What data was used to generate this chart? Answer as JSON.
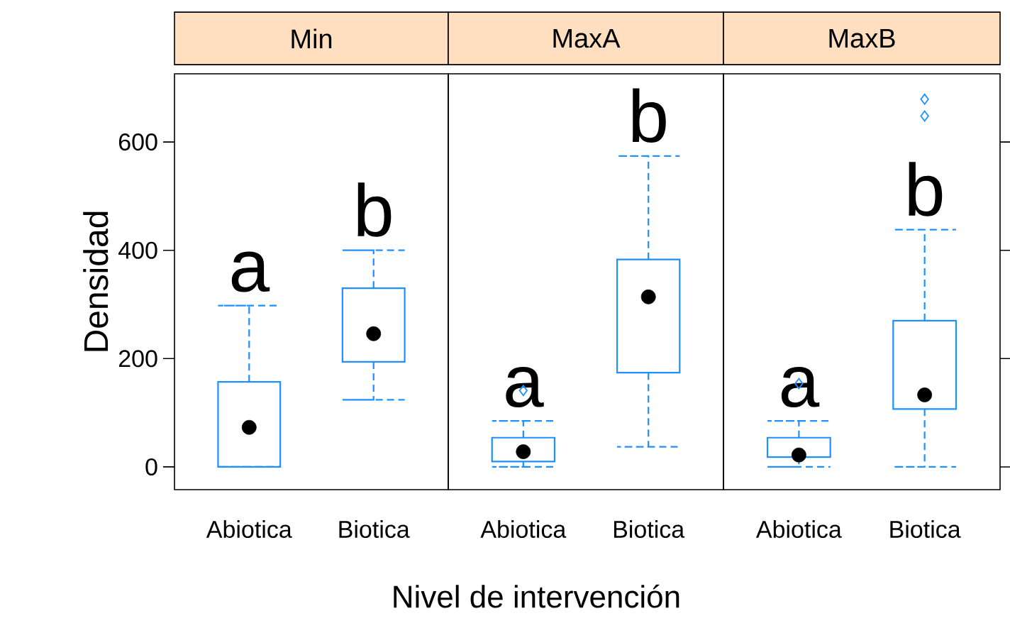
{
  "chart_data": [
    {
      "type": "box",
      "title": "Min",
      "ylabel": "Densidad",
      "categories": [
        "Abiotica",
        "Biotica"
      ],
      "color": "#1e90ff",
      "ylim": [
        -42,
        726
      ],
      "yticks": [
        0,
        200,
        400,
        600
      ],
      "boxes": [
        {
          "low": 0,
          "q1": 0,
          "median": 73,
          "q3": 157,
          "high": 298
        },
        {
          "low": 124,
          "q1": 194,
          "median": 246,
          "q3": 330,
          "high": 400
        }
      ],
      "annotations": [
        "a",
        "b"
      ]
    },
    {
      "type": "box",
      "title": "MaxA",
      "xlabel": "Nivel de intervención",
      "categories": [
        "Abiotica",
        "Biotica"
      ],
      "color": "#1e90ff",
      "ylim": [
        -42,
        726
      ],
      "tick_labels": "x",
      "boxes": [
        {
          "low": 0,
          "q1": 10,
          "median": 28,
          "q3": 54,
          "high": 85,
          "outliers": [
            141
          ]
        },
        {
          "low": 37,
          "q1": 174,
          "median": 314,
          "q3": 383,
          "high": 574
        }
      ],
      "annotations": [
        "a",
        "b"
      ]
    },
    {
      "type": "box",
      "title": "MaxB",
      "categories": [
        "Abiotica",
        "Biotica"
      ],
      "color": "#1e90ff",
      "ylim": [
        -42,
        726
      ],
      "yticks": [
        0,
        200,
        400,
        600
      ],
      "tick_labels": "x",
      "boxes": [
        {
          "low": 0,
          "q1": 18,
          "median": 22,
          "q3": 54,
          "high": 85,
          "outliers": [
            154
          ]
        },
        {
          "low": 0,
          "q1": 107,
          "median": 133,
          "q3": 270,
          "high": 438,
          "outliers": [
            648,
            679
          ]
        }
      ],
      "annotations": [
        "a",
        "b"
      ]
    }
  ]
}
